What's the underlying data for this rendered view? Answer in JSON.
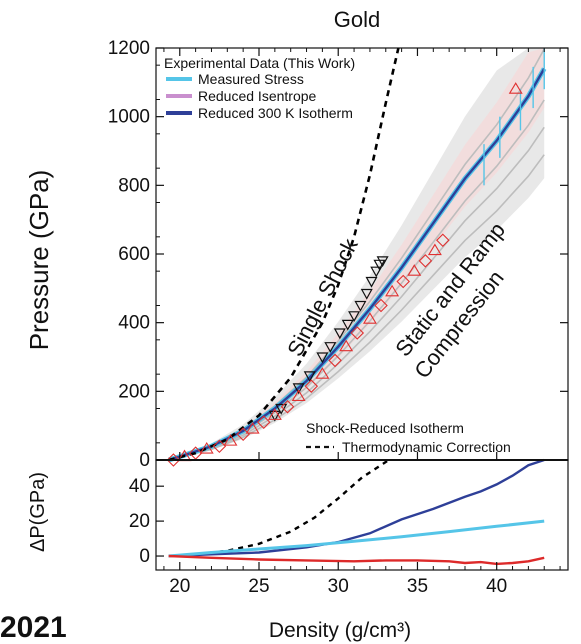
{
  "chart_data": {
    "type": "line",
    "title": "Gold",
    "year_label": "2021",
    "xlabel": "Density (g/cm³)",
    "ylabel_top": "Pressure (GPa)",
    "ylabel_bottom": "ΔP(GPa)",
    "xlim": [
      18.5,
      44.5
    ],
    "top": {
      "ylim": [
        0,
        1200
      ],
      "yticks": [
        0,
        200,
        400,
        600,
        800,
        1000,
        1200
      ],
      "ytick_labels": [
        "0",
        "200",
        "400",
        "600",
        "800",
        "1000",
        "1200"
      ]
    },
    "bottom": {
      "ylim": [
        -8,
        55
      ],
      "yticks": [
        0,
        20,
        40
      ],
      "ytick_labels": [
        "0",
        "20",
        "40"
      ]
    },
    "xticks": [
      20,
      25,
      30,
      35,
      40
    ],
    "xtick_labels": [
      "20",
      "25",
      "30",
      "35",
      "40"
    ],
    "legend_top": {
      "title": "Experimental Data (This Work)",
      "entries": [
        {
          "name": "Measured Stress",
          "color": "#55c5e8"
        },
        {
          "name": "Reduced Isentrope",
          "color": "#c98fce"
        },
        {
          "name": "Reduced 300 K Isotherm",
          "color": "#2e3f98"
        }
      ]
    },
    "legend_bottom": {
      "entries": [
        {
          "name": "Shock-Reduced Isotherm",
          "style": "none"
        },
        {
          "name": "Thermodynamic Correction",
          "style": "dashed"
        }
      ]
    },
    "annotations": {
      "single_shock": "Single Shock",
      "static_ramp_1": "Static and Ramp",
      "static_ramp_2": "Compression"
    },
    "series": [
      {
        "name": "Reduced 300 K Isotherm",
        "color": "#2e3f98",
        "x": [
          19.3,
          20,
          22,
          24,
          26,
          28,
          30,
          32,
          34,
          36,
          38,
          40,
          42,
          43
        ],
        "y": [
          0,
          10,
          40,
          85,
          150,
          230,
          330,
          440,
          560,
          690,
          820,
          930,
          1060,
          1140
        ]
      },
      {
        "name": "Single Shock Hugoniot",
        "color": "#000000",
        "style": "dashed",
        "x": [
          19.3,
          21,
          23,
          25,
          27,
          29,
          30,
          31,
          32,
          33,
          33.8
        ],
        "y": [
          0,
          20,
          60,
          130,
          240,
          400,
          510,
          650,
          830,
          1040,
          1200
        ]
      }
    ],
    "shock_points": {
      "x": [
        26.0,
        26.4,
        27.5,
        28.2,
        29.0,
        29.5,
        30.1,
        30.6,
        31.0,
        31.4,
        31.8,
        32.1,
        32.4,
        32.6,
        32.8
      ],
      "y": [
        130,
        150,
        210,
        245,
        300,
        330,
        370,
        395,
        420,
        450,
        485,
        520,
        550,
        570,
        580
      ]
    },
    "isentrope_points": {
      "x": [
        19.6,
        20.3,
        21.0,
        21.7,
        22.5,
        23.2,
        24.0,
        24.6,
        25.3,
        26.0,
        26.8,
        27.5,
        28.3,
        29.0,
        29.8,
        30.5,
        31.2,
        32.0,
        32.7,
        33.4,
        34.1,
        34.8,
        35.5,
        36.1,
        36.6,
        41.2
      ],
      "y": [
        0,
        10,
        20,
        32,
        40,
        55,
        75,
        90,
        110,
        130,
        155,
        185,
        215,
        250,
        290,
        330,
        370,
        410,
        450,
        490,
        520,
        550,
        580,
        610,
        640,
        1080
      ]
    },
    "delta_p": [
      {
        "name": "dashed-black",
        "color": "#000000",
        "style": "dashed",
        "x": [
          19.3,
          21,
          23,
          25,
          27,
          28.5,
          30,
          31.5,
          33.2
        ],
        "y": [
          0,
          1,
          3,
          7,
          14,
          22,
          33,
          45,
          55
        ]
      },
      {
        "name": "navy",
        "color": "#2e3f98",
        "x": [
          19.3,
          22,
          25,
          28,
          30,
          32,
          34,
          36,
          38,
          39,
          40,
          41,
          42,
          43
        ],
        "y": [
          0,
          1,
          2,
          5,
          8,
          13,
          21,
          27,
          34,
          37,
          41,
          46,
          52,
          58
        ]
      },
      {
        "name": "cyan",
        "color": "#55c5e8",
        "x": [
          19.3,
          22,
          25,
          28,
          31,
          34,
          37,
          40,
          43
        ],
        "y": [
          0,
          2,
          4,
          6,
          8.5,
          11,
          14,
          17,
          20
        ]
      },
      {
        "name": "red",
        "color": "#dd2a2a",
        "x": [
          19.3,
          22,
          25,
          28,
          31,
          33,
          35,
          37,
          38,
          39,
          40,
          41,
          42,
          43
        ],
        "y": [
          0,
          -1,
          -2,
          -2.5,
          -3,
          -2.5,
          -2.5,
          -3,
          -4,
          -3.5,
          -4.5,
          -4,
          -3,
          -1
        ]
      }
    ]
  }
}
